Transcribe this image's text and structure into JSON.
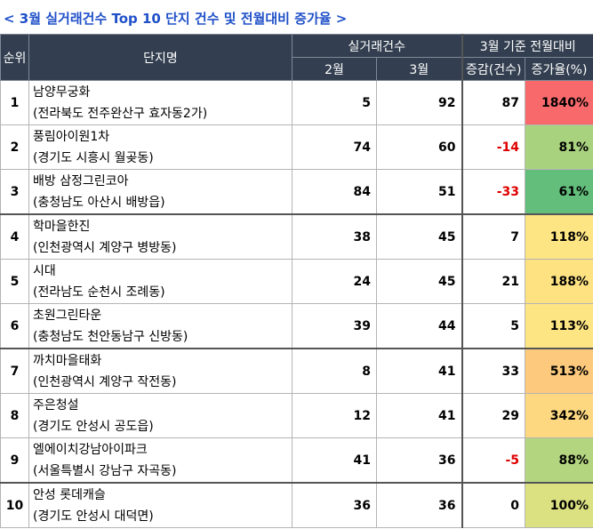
{
  "title": "< 3월 실거래건수 Top 10 단지 건수 및 전월대비 증가율 >",
  "headers": {
    "rank": "순위",
    "name": "단지명",
    "trades": "실거래건수",
    "feb": "2월",
    "mar": "3월",
    "mom": "3월 기준 전월대비",
    "change": "증감(건수)",
    "rate": "증가율(%)"
  },
  "rows": [
    {
      "rank": "1",
      "name": "남양무궁화",
      "location": "(전라북도 전주완산구 효자동2가)",
      "feb": "5",
      "mar": "92",
      "change": "87",
      "rate": "1840%",
      "rate_color": "#f8696b"
    },
    {
      "rank": "2",
      "name": "풍림아이원1차",
      "location": "(경기도 시흥시 월곶동)",
      "feb": "74",
      "mar": "60",
      "change": "-14",
      "rate": "81%",
      "rate_color": "#a9d27f"
    },
    {
      "rank": "3",
      "name": "배방 삼정그린코아",
      "location": "(충청남도 아산시 배방읍)",
      "feb": "84",
      "mar": "51",
      "change": "-33",
      "rate": "61%",
      "rate_color": "#63be7b"
    },
    {
      "rank": "4",
      "name": "학마을한진",
      "location": "(인천광역시 계양구 병방동)",
      "feb": "38",
      "mar": "45",
      "change": "7",
      "rate": "118%",
      "rate_color": "#fee583"
    },
    {
      "rank": "5",
      "name": "시대",
      "location": "(전라남도 순천시 조례동)",
      "feb": "24",
      "mar": "45",
      "change": "21",
      "rate": "188%",
      "rate_color": "#fee282"
    },
    {
      "rank": "6",
      "name": "초원그린타운",
      "location": "(충청남도 천안동남구 신방동)",
      "feb": "39",
      "mar": "44",
      "change": "5",
      "rate": "113%",
      "rate_color": "#fee583"
    },
    {
      "rank": "7",
      "name": "까치마을태화",
      "location": "(인천광역시 계양구 작전동)",
      "feb": "8",
      "mar": "41",
      "change": "33",
      "rate": "513%",
      "rate_color": "#fdc97c"
    },
    {
      "rank": "8",
      "name": "주은청설",
      "location": "(경기도 안성시 공도읍)",
      "feb": "12",
      "mar": "41",
      "change": "29",
      "rate": "342%",
      "rate_color": "#fed880"
    },
    {
      "rank": "9",
      "name": "엘에이치강남아이파크",
      "location": "(서울특별시 강남구 자곡동)",
      "feb": "41",
      "mar": "36",
      "change": "-5",
      "rate": "88%",
      "rate_color": "#b3d580"
    },
    {
      "rank": "10",
      "name": "안성 롯데캐슬",
      "location": "(경기도 안성시 대덕면)",
      "feb": "36",
      "mar": "36",
      "change": "0",
      "rate": "100%",
      "rate_color": "#dbe081"
    }
  ]
}
